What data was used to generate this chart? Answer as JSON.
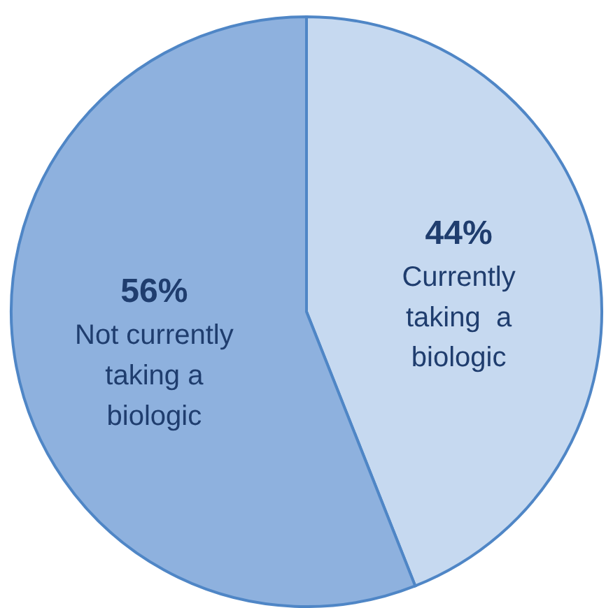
{
  "chart_data": {
    "type": "pie",
    "categories": [
      "Currently\ntaking  a\nbiologic",
      "Not currently\ntaking a\nbiologic"
    ],
    "values": [
      44,
      56
    ],
    "colors": [
      "#c6d9f0",
      "#8eb1de"
    ],
    "value_labels": [
      "44%",
      "56%"
    ]
  }
}
